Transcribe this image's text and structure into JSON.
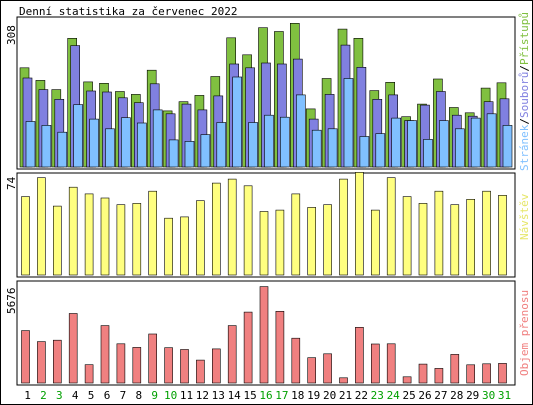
{
  "title": "Denní statistika za červenec 2022",
  "chart_data": [
    {
      "type": "bar",
      "panel": "hits",
      "categories": [
        "1",
        "2",
        "3",
        "4",
        "5",
        "6",
        "7",
        "8",
        "9",
        "10",
        "11",
        "12",
        "13",
        "14",
        "15",
        "16",
        "17",
        "18",
        "19",
        "20",
        "21",
        "22",
        "23",
        "24",
        "25",
        "26",
        "27",
        "28",
        "29",
        "30",
        "31"
      ],
      "ylim": [
        0,
        308
      ],
      "y_tick_label": "308",
      "series": [
        {
          "name": "Přístupů",
          "color": "#80c040",
          "values": [
            205,
            179,
            160,
            266,
            176,
            173,
            156,
            150,
            200,
            116,
            135,
            148,
            187,
            267,
            232,
            288,
            280,
            297,
            120,
            183,
            285,
            266,
            158,
            175,
            104,
            130,
            182,
            123,
            112,
            163,
            174
          ]
        },
        {
          "name": "Souborů",
          "color": "#8080e0",
          "values": [
            184,
            160,
            140,
            251,
            157,
            155,
            143,
            133,
            172,
            110,
            130,
            118,
            147,
            213,
            205,
            215,
            213,
            223,
            99,
            150,
            252,
            206,
            140,
            149,
            96,
            128,
            156,
            107,
            105,
            135,
            141
          ]
        },
        {
          "name": "Stránek",
          "color": "#80c0ff",
          "values": [
            94,
            86,
            72,
            129,
            99,
            79,
            102,
            91,
            118,
            56,
            53,
            67,
            92,
            186,
            92,
            107,
            103,
            149,
            76,
            79,
            183,
            63,
            69,
            101,
            96,
            57,
            96,
            79,
            101,
            110,
            86
          ]
        }
      ]
    },
    {
      "type": "bar",
      "panel": "visits",
      "categories": [
        "1",
        "2",
        "3",
        "4",
        "5",
        "6",
        "7",
        "8",
        "9",
        "10",
        "11",
        "12",
        "13",
        "14",
        "15",
        "16",
        "17",
        "18",
        "19",
        "20",
        "21",
        "22",
        "23",
        "24",
        "25",
        "26",
        "27",
        "28",
        "29",
        "30",
        "31"
      ],
      "ylim": [
        0,
        74
      ],
      "y_tick_label": "74",
      "series": [
        {
          "name": "Návštěv",
          "color": "#ffff80",
          "values": [
            58,
            72,
            51,
            65,
            60,
            57,
            52,
            53,
            62,
            42,
            43,
            55,
            68,
            71,
            66,
            47,
            48,
            60,
            50,
            52,
            71,
            76,
            48,
            72,
            58,
            53,
            62,
            52,
            56,
            62,
            59
          ]
        }
      ]
    },
    {
      "type": "bar",
      "panel": "traffic",
      "categories": [
        "1",
        "2",
        "3",
        "4",
        "5",
        "6",
        "7",
        "8",
        "9",
        "10",
        "11",
        "12",
        "13",
        "14",
        "15",
        "16",
        "17",
        "18",
        "19",
        "20",
        "21",
        "22",
        "23",
        "24",
        "25",
        "26",
        "27",
        "28",
        "29",
        "30",
        "31"
      ],
      "ylim": [
        0,
        5676
      ],
      "y_tick_label": "5676",
      "series": [
        {
          "name": "Objem přenosu",
          "color": "#f08080",
          "values": [
            2972,
            2350,
            2430,
            3942,
            1038,
            3260,
            2223,
            2023,
            2780,
            2003,
            1903,
            1297,
            1938,
            3259,
            4026,
            5472,
            4069,
            2545,
            1434,
            1659,
            294,
            3161,
            2214,
            2227,
            350,
            1074,
            830,
            1621,
            1034,
            1087,
            1113
          ]
        }
      ]
    }
  ],
  "x_day_colors": {
    "weekday": "#000000",
    "weekend": "#00a000"
  },
  "weekend_days": [
    2,
    3,
    9,
    10,
    16,
    17,
    23,
    24,
    30,
    31
  ],
  "colors": {
    "frame": "#000000",
    "panel_bg": "#ffffff",
    "page_bg": "#ffffff"
  }
}
